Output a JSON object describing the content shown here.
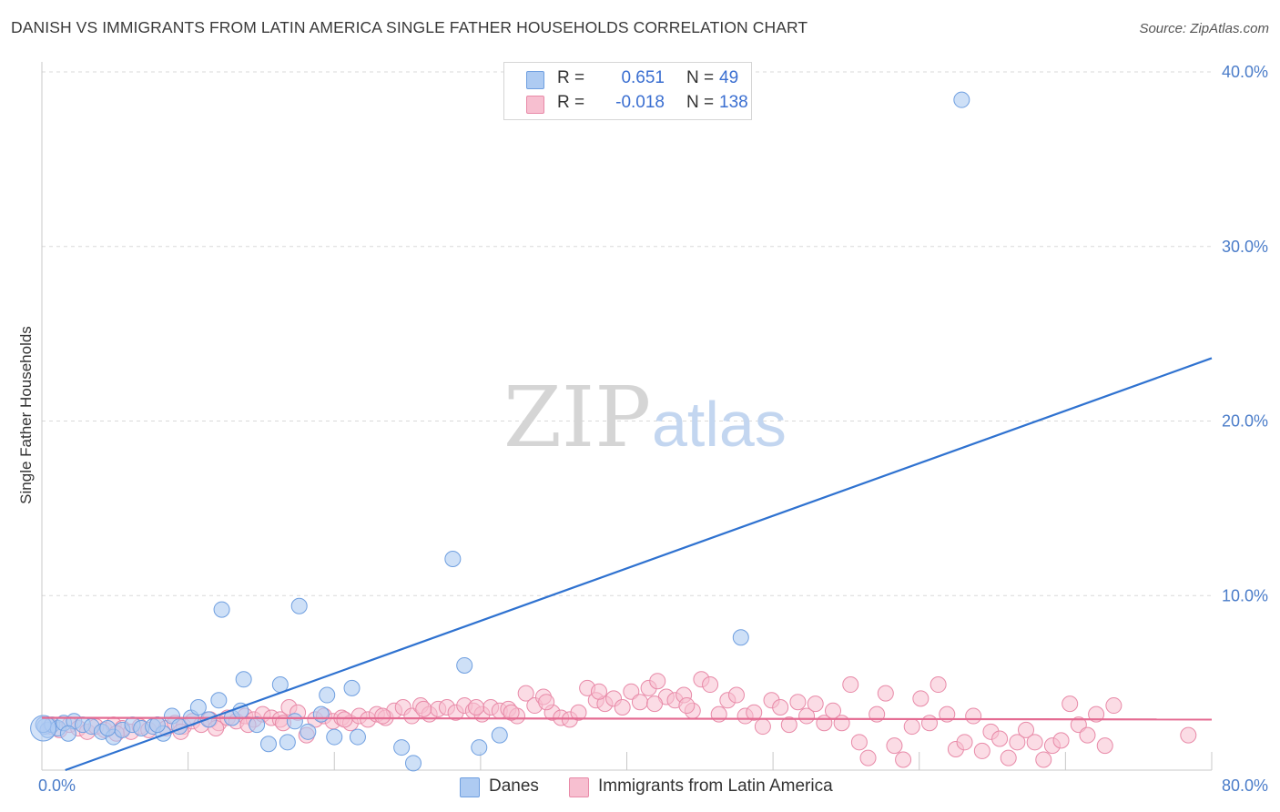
{
  "title": "DANISH VS IMMIGRANTS FROM LATIN AMERICA SINGLE FATHER HOUSEHOLDS CORRELATION CHART",
  "source": "Source: ZipAtlas.com",
  "watermark": {
    "zip": "ZIP",
    "atlas": "atlas"
  },
  "legend_top": [
    {
      "r_label": "R =",
      "r_value": "0.651",
      "n_label": "N =",
      "n_value": "49"
    },
    {
      "r_label": "R =",
      "r_value": "-0.018",
      "n_label": "N =",
      "n_value": "138"
    }
  ],
  "legend_bottom": [
    "Danes",
    "Immigrants from Latin America"
  ],
  "colors": {
    "blue_fill": "#aecbf2",
    "blue_stroke": "#6f9fe0",
    "blue_line": "#2f72d0",
    "pink_fill": "#f7bfd0",
    "pink_stroke": "#e88aa8",
    "pink_line": "#e46b92",
    "grid": "#d9d9d9",
    "tick_text": "#4a7cc9"
  },
  "chart_data": {
    "type": "scatter",
    "title": "DANISH VS IMMIGRANTS FROM LATIN AMERICA SINGLE FATHER HOUSEHOLDS CORRELATION CHART",
    "xlabel": "",
    "ylabel": "Single Father Households",
    "xlim": [
      0,
      80
    ],
    "ylim": [
      0,
      40
    ],
    "x_tick_labels": [
      "0.0%",
      "80.0%"
    ],
    "y_ticks": [
      10,
      20,
      30,
      40
    ],
    "y_tick_labels": [
      "10.0%",
      "20.0%",
      "30.0%",
      "40.0%"
    ],
    "grid": true,
    "series": [
      {
        "name": "Danes",
        "R": 0.651,
        "N": 49,
        "trend": {
          "x": [
            1.6,
            80
          ],
          "y": [
            0.0,
            23.6
          ]
        },
        "points": [
          [
            0.2,
            2.5
          ],
          [
            0.4,
            2.3
          ],
          [
            0.7,
            2.6
          ],
          [
            1.1,
            2.4
          ],
          [
            1.5,
            2.7
          ],
          [
            2.2,
            2.8
          ],
          [
            2.8,
            2.6
          ],
          [
            3.4,
            2.5
          ],
          [
            4.1,
            2.2
          ],
          [
            4.9,
            1.9
          ],
          [
            5.5,
            2.3
          ],
          [
            6.2,
            2.6
          ],
          [
            6.8,
            2.4
          ],
          [
            7.6,
            2.5
          ],
          [
            8.3,
            2.1
          ],
          [
            8.9,
            3.1
          ],
          [
            9.4,
            2.5
          ],
          [
            10.2,
            3.0
          ],
          [
            10.7,
            3.6
          ],
          [
            11.4,
            2.9
          ],
          [
            12.1,
            4.0
          ],
          [
            12.3,
            9.2
          ],
          [
            13.0,
            3.0
          ],
          [
            13.6,
            3.4
          ],
          [
            13.8,
            5.2
          ],
          [
            14.7,
            2.6
          ],
          [
            15.5,
            1.5
          ],
          [
            16.3,
            4.9
          ],
          [
            16.8,
            1.6
          ],
          [
            17.3,
            2.8
          ],
          [
            17.6,
            9.4
          ],
          [
            18.2,
            2.2
          ],
          [
            19.1,
            3.2
          ],
          [
            19.5,
            4.3
          ],
          [
            20.0,
            1.9
          ],
          [
            21.6,
            1.9
          ],
          [
            21.2,
            4.7
          ],
          [
            24.6,
            1.3
          ],
          [
            25.4,
            0.4
          ],
          [
            28.1,
            12.1
          ],
          [
            28.9,
            6.0
          ],
          [
            29.9,
            1.3
          ],
          [
            31.3,
            2.0
          ],
          [
            47.8,
            7.6
          ],
          [
            62.9,
            38.4
          ],
          [
            0.1,
            2.6
          ],
          [
            1.8,
            2.1
          ],
          [
            4.5,
            2.4
          ],
          [
            7.9,
            2.6
          ]
        ]
      },
      {
        "name": "Immigrants from Latin America",
        "R": -0.018,
        "N": 138,
        "trend": {
          "x": [
            0,
            80
          ],
          "y": [
            3.0,
            2.9
          ]
        },
        "points": [
          [
            0.6,
            2.5
          ],
          [
            1.2,
            2.3
          ],
          [
            1.9,
            2.6
          ],
          [
            2.5,
            2.4
          ],
          [
            3.1,
            2.2
          ],
          [
            3.7,
            2.5
          ],
          [
            4.3,
            2.3
          ],
          [
            4.9,
            2.6
          ],
          [
            5.5,
            2.4
          ],
          [
            6.1,
            2.2
          ],
          [
            6.7,
            2.5
          ],
          [
            7.3,
            2.3
          ],
          [
            7.9,
            2.6
          ],
          [
            8.5,
            2.4
          ],
          [
            9.1,
            2.7
          ],
          [
            9.7,
            2.5
          ],
          [
            10.3,
            2.8
          ],
          [
            10.9,
            2.6
          ],
          [
            11.5,
            2.9
          ],
          [
            12.1,
            2.7
          ],
          [
            12.7,
            3.0
          ],
          [
            13.3,
            2.8
          ],
          [
            13.9,
            3.1
          ],
          [
            14.5,
            2.9
          ],
          [
            15.1,
            3.2
          ],
          [
            15.7,
            3.0
          ],
          [
            16.3,
            2.9
          ],
          [
            16.9,
            3.6
          ],
          [
            17.5,
            3.3
          ],
          [
            18.1,
            2.0
          ],
          [
            18.7,
            2.9
          ],
          [
            19.3,
            3.1
          ],
          [
            19.9,
            2.8
          ],
          [
            20.5,
            3.0
          ],
          [
            21.1,
            2.7
          ],
          [
            21.7,
            3.1
          ],
          [
            22.3,
            2.9
          ],
          [
            22.9,
            3.2
          ],
          [
            23.5,
            3.0
          ],
          [
            24.1,
            3.4
          ],
          [
            24.7,
            3.6
          ],
          [
            25.3,
            3.1
          ],
          [
            25.9,
            3.7
          ],
          [
            26.5,
            3.2
          ],
          [
            27.1,
            3.5
          ],
          [
            27.7,
            3.6
          ],
          [
            28.3,
            3.3
          ],
          [
            28.9,
            3.7
          ],
          [
            29.5,
            3.4
          ],
          [
            30.1,
            3.2
          ],
          [
            30.7,
            3.6
          ],
          [
            31.3,
            3.4
          ],
          [
            31.9,
            3.5
          ],
          [
            32.5,
            3.1
          ],
          [
            33.1,
            4.4
          ],
          [
            33.7,
            3.7
          ],
          [
            34.3,
            4.2
          ],
          [
            34.9,
            3.3
          ],
          [
            35.5,
            3.0
          ],
          [
            36.1,
            2.9
          ],
          [
            36.7,
            3.3
          ],
          [
            37.3,
            4.7
          ],
          [
            37.9,
            4.0
          ],
          [
            38.5,
            3.8
          ],
          [
            39.1,
            4.1
          ],
          [
            39.7,
            3.6
          ],
          [
            40.3,
            4.5
          ],
          [
            40.9,
            3.9
          ],
          [
            41.5,
            4.7
          ],
          [
            42.1,
            5.1
          ],
          [
            42.7,
            4.2
          ],
          [
            43.3,
            4.0
          ],
          [
            43.9,
            4.3
          ],
          [
            44.5,
            3.4
          ],
          [
            45.1,
            5.2
          ],
          [
            45.7,
            4.9
          ],
          [
            46.3,
            3.2
          ],
          [
            46.9,
            4.0
          ],
          [
            47.5,
            4.3
          ],
          [
            48.1,
            3.1
          ],
          [
            48.7,
            3.3
          ],
          [
            49.3,
            2.5
          ],
          [
            49.9,
            4.0
          ],
          [
            50.5,
            3.6
          ],
          [
            51.1,
            2.6
          ],
          [
            51.7,
            3.9
          ],
          [
            52.3,
            3.1
          ],
          [
            52.9,
            3.8
          ],
          [
            53.5,
            2.7
          ],
          [
            54.1,
            3.4
          ],
          [
            54.7,
            2.7
          ],
          [
            55.3,
            4.9
          ],
          [
            55.9,
            1.6
          ],
          [
            56.5,
            0.7
          ],
          [
            57.1,
            3.2
          ],
          [
            57.7,
            4.4
          ],
          [
            58.3,
            1.4
          ],
          [
            58.9,
            0.6
          ],
          [
            59.5,
            2.5
          ],
          [
            60.1,
            4.1
          ],
          [
            60.7,
            2.7
          ],
          [
            61.3,
            4.9
          ],
          [
            61.9,
            3.2
          ],
          [
            62.5,
            1.2
          ],
          [
            63.1,
            1.6
          ],
          [
            63.7,
            3.1
          ],
          [
            64.3,
            1.1
          ],
          [
            64.9,
            2.2
          ],
          [
            65.5,
            1.8
          ],
          [
            66.1,
            0.7
          ],
          [
            66.7,
            1.6
          ],
          [
            67.3,
            2.3
          ],
          [
            67.9,
            1.6
          ],
          [
            68.5,
            0.6
          ],
          [
            69.1,
            1.4
          ],
          [
            69.7,
            1.7
          ],
          [
            70.3,
            3.8
          ],
          [
            70.9,
            2.6
          ],
          [
            71.5,
            2.0
          ],
          [
            72.1,
            3.2
          ],
          [
            72.7,
            1.4
          ],
          [
            73.3,
            3.7
          ],
          [
            78.4,
            2.0
          ],
          [
            5.1,
            2.1
          ],
          [
            9.5,
            2.2
          ],
          [
            11.9,
            2.4
          ],
          [
            14.1,
            2.6
          ],
          [
            16.5,
            2.7
          ],
          [
            20.7,
            2.9
          ],
          [
            23.3,
            3.1
          ],
          [
            26.1,
            3.5
          ],
          [
            29.7,
            3.6
          ],
          [
            32.1,
            3.3
          ],
          [
            34.5,
            3.9
          ],
          [
            38.1,
            4.5
          ],
          [
            41.9,
            3.8
          ],
          [
            44.1,
            3.7
          ]
        ]
      }
    ]
  }
}
